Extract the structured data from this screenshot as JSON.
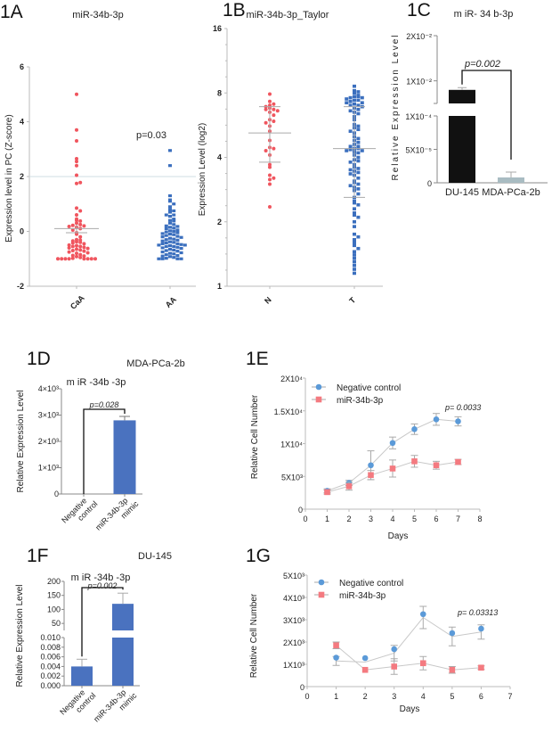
{
  "figure": {
    "colors": {
      "red": "#f0555e",
      "blue": "#3b6fbe",
      "bar_blue": "#4a72bf",
      "bar_black": "#111111",
      "bar_grey": "#a9bcc2",
      "line_blue": "#5b9ad8",
      "line_red": "#f47a80"
    }
  },
  "chart_data": [
    {
      "id": "1A",
      "panel_label": "1A",
      "type": "scatter",
      "title": "miR-34b-3p",
      "xlabel": "",
      "ylabel": "Expression level in PC (Z-score)",
      "ylim": [
        -2,
        6
      ],
      "yticks": [
        "-2",
        "0",
        "2",
        "4",
        "6"
      ],
      "categories": [
        "CaA",
        "AA"
      ],
      "reference_line": 2,
      "annotation": "p=0.03",
      "series": [
        {
          "name": "CaA",
          "color": "red",
          "mean": 0.1,
          "sem": 0.15,
          "values": [
            5.0,
            3.7,
            3.3,
            2.65,
            2.55,
            2.4,
            2.05,
            1.75,
            1.78,
            0.85,
            0.75,
            0.6,
            0.45,
            0.4,
            0.38,
            0.3,
            0.25,
            0.22,
            0.2,
            0.18,
            0.15,
            0.1,
            0.05,
            -0.05,
            -0.1,
            -0.2,
            -0.3,
            -0.32,
            -0.35,
            -0.38,
            -0.4,
            -0.42,
            -0.45,
            -0.5,
            -0.52,
            -0.55,
            -0.55,
            -0.58,
            -0.6,
            -0.62,
            -0.65,
            -0.68,
            -0.7,
            -0.72,
            -0.75,
            -0.78,
            -0.8,
            -0.85,
            -0.88,
            -0.9,
            -0.92,
            -0.95,
            -0.98,
            -1.0,
            -1.0,
            -1.0,
            -1.0,
            -1.0,
            -1.0,
            -1.0,
            -1.0
          ]
        },
        {
          "name": "AA",
          "color": "blue",
          "mean": -0.1,
          "sem": 0.08,
          "values": [
            2.95,
            2.4,
            1.3,
            1.15,
            1.1,
            1.0,
            0.9,
            0.8,
            0.75,
            0.7,
            0.6,
            0.6,
            0.55,
            0.45,
            0.4,
            0.38,
            0.3,
            0.25,
            0.2,
            0.18,
            0.15,
            0.12,
            0.1,
            0.05,
            0.02,
            0.0,
            -0.02,
            -0.05,
            -0.08,
            -0.1,
            -0.12,
            -0.15,
            -0.18,
            -0.2,
            -0.22,
            -0.25,
            -0.28,
            -0.3,
            -0.32,
            -0.35,
            -0.38,
            -0.4,
            -0.42,
            -0.45,
            -0.45,
            -0.48,
            -0.5,
            -0.5,
            -0.52,
            -0.55,
            -0.55,
            -0.58,
            -0.6,
            -0.62,
            -0.65,
            -0.68,
            -0.7,
            -0.72,
            -0.75,
            -0.78,
            -0.8,
            -0.82,
            -0.85,
            -0.88,
            -0.9,
            -0.92,
            -0.95,
            -0.98,
            -1.0,
            -1.0,
            -1.0,
            -1.0
          ]
        }
      ]
    },
    {
      "id": "1B",
      "panel_label": "1B",
      "type": "scatter",
      "title": "miR-34b-3p_Taylor",
      "xlabel": "",
      "ylabel": "Expression Level (log2)",
      "yscale": "log2",
      "ylim": [
        1,
        16
      ],
      "yticks": [
        "1",
        "2",
        "4",
        "8",
        "16"
      ],
      "categories": [
        "N",
        "T"
      ],
      "series": [
        {
          "name": "N",
          "color": "red",
          "mean": 5.2,
          "sd_low": 3.8,
          "sd_high": 6.9,
          "values": [
            7.9,
            7.3,
            7.0,
            7.1,
            6.9,
            6.8,
            6.7,
            6.7,
            6.6,
            6.5,
            6.3,
            6.0,
            5.9,
            5.8,
            5.6,
            5.3,
            4.8,
            4.45,
            4.4,
            4.3,
            4.1,
            3.7,
            3.6,
            3.3,
            3.2,
            3.15,
            3.0,
            2.35
          ]
        },
        {
          "name": "T",
          "color": "blue",
          "mean": 4.4,
          "sd_low": 2.6,
          "sd_high": 6.9,
          "values": [
            8.6,
            8.2,
            8.1,
            8.0,
            7.8,
            7.7,
            7.7,
            7.6,
            7.6,
            7.5,
            7.4,
            7.4,
            7.3,
            7.2,
            7.2,
            7.1,
            7.0,
            7.0,
            6.9,
            6.8,
            6.7,
            6.6,
            6.5,
            6.4,
            6.2,
            6.0,
            5.7,
            5.6,
            5.5,
            5.4,
            5.3,
            5.2,
            5.0,
            4.9,
            4.8,
            4.7,
            4.6,
            4.5,
            4.5,
            4.4,
            4.4,
            4.35,
            4.3,
            4.3,
            4.25,
            4.2,
            4.1,
            4.0,
            3.9,
            3.85,
            3.8,
            3.7,
            3.6,
            3.55,
            3.5,
            3.45,
            3.4,
            3.35,
            3.3,
            3.2,
            3.1,
            3.05,
            3.0,
            2.95,
            2.9,
            2.85,
            2.8,
            2.7,
            2.6,
            2.5,
            2.45,
            2.4,
            2.3,
            2.2,
            2.15,
            2.1,
            2.0,
            1.9,
            1.75,
            1.7,
            1.65,
            1.6,
            1.55,
            1.5,
            1.45,
            1.4,
            1.35,
            1.3,
            1.25,
            1.2,
            1.15
          ]
        }
      ]
    },
    {
      "id": "1C",
      "panel_label": "1C",
      "type": "bar",
      "title": "m iR- 34 b-3p",
      "xlabel": "",
      "ylabel": "Relative Expression Level",
      "broken_axis": true,
      "yticks_upper": [
        "2X10⁻²",
        "1X10⁻²"
      ],
      "yticks_lower": [
        "1X10⁻⁴",
        "5X10⁻⁵",
        "0"
      ],
      "categories": [
        "DU-145",
        "MDA-PCa-2b"
      ],
      "values": [
        0.008,
        8e-06
      ],
      "errors": [
        0.0005,
        8e-06
      ],
      "bar_colors": [
        "bar_black",
        "bar_grey"
      ],
      "annotation": "p=0.002"
    },
    {
      "id": "1D",
      "panel_label": "1D",
      "type": "bar",
      "cell_line": "MDA-PCa-2b",
      "title": "m iR -34b -3p",
      "xlabel": "",
      "ylabel": "Relative Expression Level",
      "ylim": [
        0,
        4000
      ],
      "yticks": [
        "0",
        "1×10³",
        "2×10³",
        "3×10³",
        "4×10³"
      ],
      "categories": [
        "Negative control",
        "miR-34b-3p mimic"
      ],
      "values": [
        1,
        2800
      ],
      "errors": [
        0,
        150
      ],
      "annotation": "p=0.028"
    },
    {
      "id": "1E",
      "panel_label": "1E",
      "type": "line",
      "title": "",
      "xlabel": "Days",
      "ylabel": "Relative Cell Number",
      "xlim": [
        0,
        8
      ],
      "xticks": [
        "0",
        "1",
        "2",
        "3",
        "4",
        "5",
        "6",
        "7",
        "8"
      ],
      "ylim": [
        0,
        20000
      ],
      "yticks": [
        "0",
        "5X10³",
        "1X10⁴",
        "1.5X10⁴",
        "2X10⁴"
      ],
      "legend": "top-left",
      "annotation": "p= 0.0033",
      "x": [
        1,
        2,
        3,
        4,
        5,
        6,
        7
      ],
      "series": [
        {
          "name": "Negative control",
          "marker": "circle",
          "color": "line_blue",
          "values": [
            2800,
            4000,
            6700,
            10100,
            12200,
            13700,
            13400
          ],
          "errors": [
            300,
            400,
            2200,
            900,
            800,
            900,
            700
          ]
        },
        {
          "name": "miR-34b-3p",
          "marker": "square",
          "color": "line_red",
          "values": [
            2600,
            3500,
            5200,
            6200,
            7300,
            6700,
            7200
          ],
          "errors": [
            300,
            600,
            700,
            1300,
            900,
            600,
            400
          ]
        }
      ]
    },
    {
      "id": "1F",
      "panel_label": "1F",
      "type": "bar",
      "cell_line": "DU-145",
      "title": "m iR -34b -3p",
      "xlabel": "",
      "ylabel": "Relative Expression Level",
      "broken_axis": true,
      "yticks_upper": [
        "50",
        "100",
        "150",
        "200"
      ],
      "yticks_lower": [
        "0.000",
        "0.002",
        "0.004",
        "0.006",
        "0.008",
        "0.010"
      ],
      "categories": [
        "Negative control",
        "miR-34b-3p mimic"
      ],
      "values": [
        0.004,
        120
      ],
      "errors": [
        0.0015,
        38
      ],
      "annotation": "p=0.002"
    },
    {
      "id": "1G",
      "panel_label": "1G",
      "type": "line",
      "title": "",
      "xlabel": "Days",
      "ylabel": "Relative Cell Number",
      "xlim": [
        0,
        7
      ],
      "xticks": [
        "0",
        "1",
        "2",
        "3",
        "4",
        "5",
        "6",
        "7"
      ],
      "ylim": [
        0,
        5000
      ],
      "yticks": [
        "0",
        "1X10³",
        "2X10³",
        "3X10³",
        "4X10³",
        "5X10³"
      ],
      "legend": "top-left",
      "annotation": "p= 0.03313",
      "x": [
        1,
        2,
        3,
        4,
        5,
        6
      ],
      "series": [
        {
          "name": "Negative control",
          "marker": "circle",
          "color": "line_blue",
          "values": [
            1300,
            1280,
            1680,
            3250,
            2400,
            2600
          ],
          "line_values": [
            1150,
            1100,
            1500,
            3100,
            2250,
            2450
          ],
          "errors": [
            200,
            0,
            350,
            500,
            420,
            320
          ]
        },
        {
          "name": "miR-34b-3p",
          "marker": "square",
          "color": "line_red",
          "values": [
            1850,
            750,
            900,
            1050,
            750,
            850
          ],
          "errors": [
            150,
            0,
            350,
            300,
            150,
            80
          ]
        }
      ]
    }
  ]
}
